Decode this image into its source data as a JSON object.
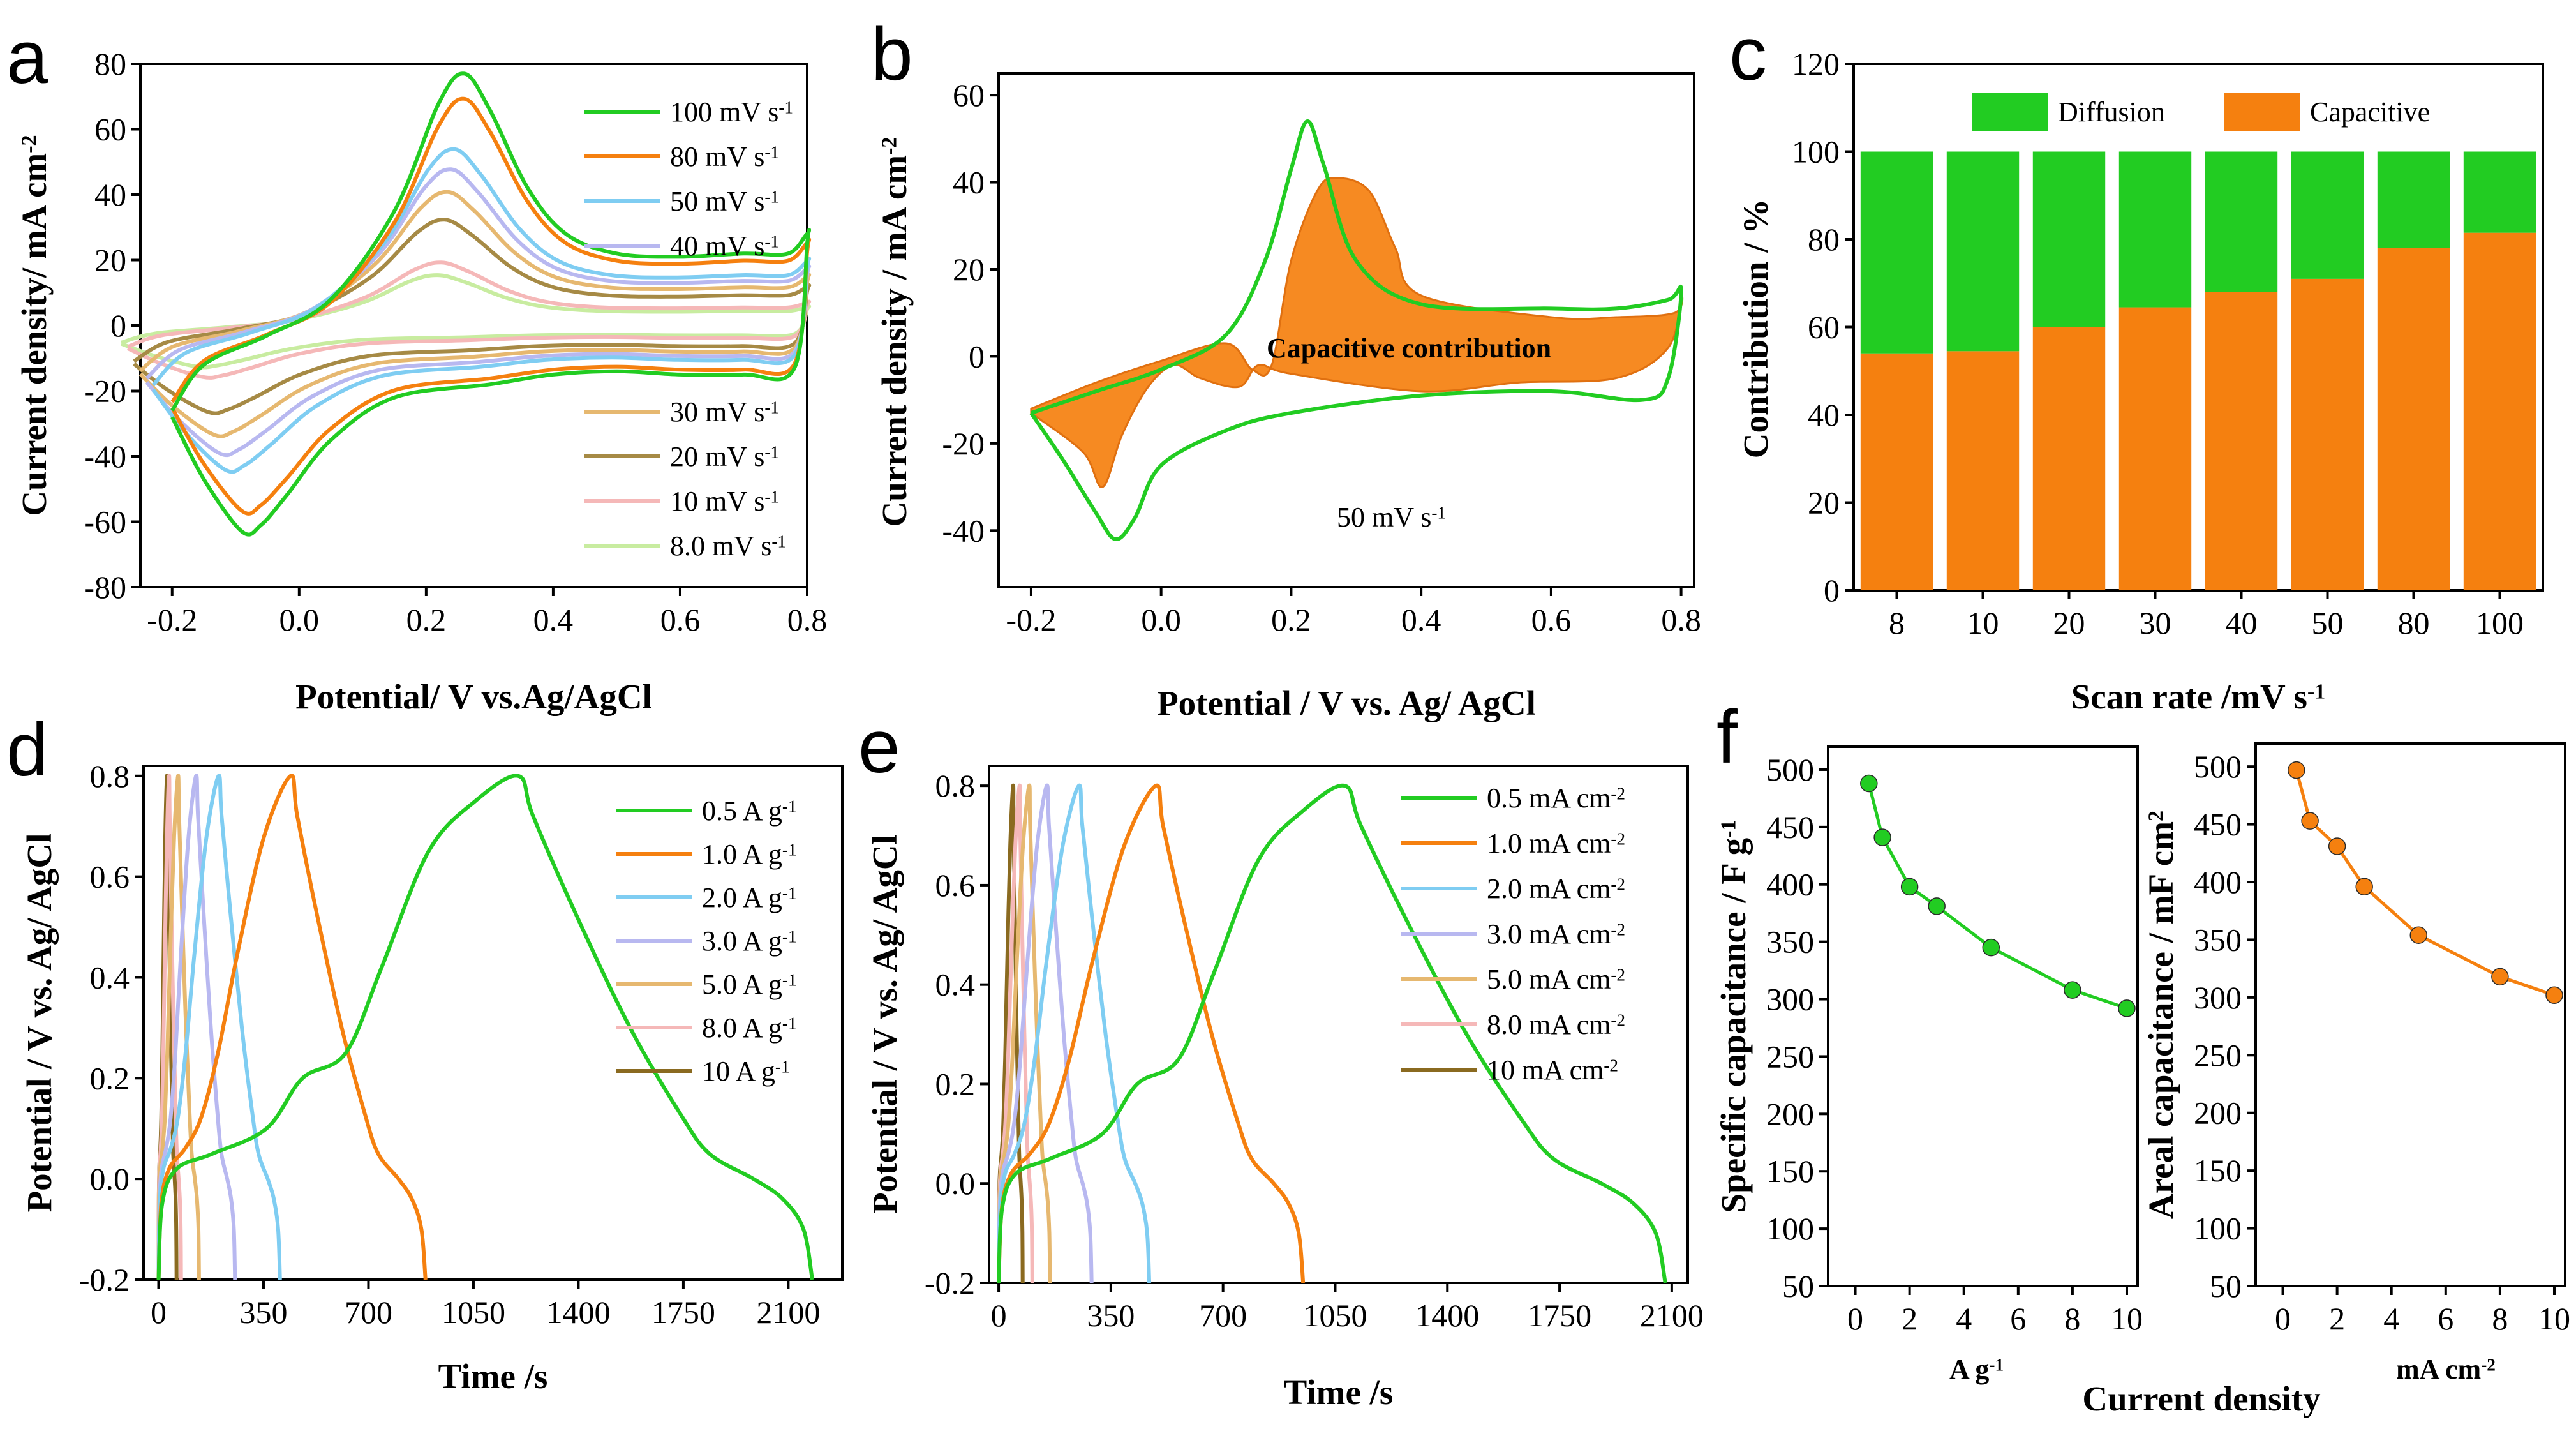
{
  "colors": {
    "green": "#22cc22",
    "orange": "#f5800f",
    "lightblue": "#7fcdf2",
    "lavender": "#b8b8f0",
    "tan": "#e6b870",
    "olive": "#a68a45",
    "pink": "#f5b8b8",
    "lightgreen": "#c8eca0",
    "brown": "#8a6a20",
    "violet": "#9b30e0"
  },
  "chart_data": [
    {
      "panel": "a",
      "type": "line",
      "xlabel": "Potential/ V vs.Ag/AgCl",
      "ylabel": "Current density/ mA cm",
      "ylabel_sup": "-2",
      "xlim": [
        -0.25,
        0.8
      ],
      "ylim": [
        -80,
        80
      ],
      "xticks": [
        -0.2,
        0.0,
        0.2,
        0.4,
        0.6,
        0.8
      ],
      "xtick_labels": [
        "-0.2",
        "0.0",
        "0.2",
        "0.4",
        "0.6",
        "0.8"
      ],
      "yticks": [
        -80,
        -60,
        -40,
        -20,
        0,
        20,
        40,
        60,
        80
      ],
      "ytick_labels": [
        "-80",
        "-60",
        "-40",
        "-20",
        "0",
        "20",
        "40",
        "60",
        "80"
      ],
      "series": [
        {
          "name": "100 mV s",
          "sup": "-1",
          "color": "green",
          "scale": 1.0,
          "shift": 0.0
        },
        {
          "name": "80  mV s",
          "sup": "-1",
          "color": "orange",
          "scale": 0.9,
          "shift": 0.0
        },
        {
          "name": "50  mV s",
          "sup": "-1",
          "color": "lightblue",
          "scale": 0.7,
          "shift": -0.03
        },
        {
          "name": "40  mV s",
          "sup": "-1",
          "color": "lavender",
          "scale": 0.62,
          "shift": -0.04
        },
        {
          "name": "30  mV s",
          "sup": "-1",
          "color": "tan",
          "scale": 0.53,
          "shift": -0.05
        },
        {
          "name": "20  mV s",
          "sup": "-1",
          "color": "olive",
          "scale": 0.42,
          "shift": -0.06
        },
        {
          "name": "10  mV s",
          "sup": "-1",
          "color": "pink",
          "scale": 0.25,
          "shift": -0.07
        },
        {
          "name": "8.0 mV s",
          "sup": "-1",
          "color": "lightgreen",
          "scale": 0.2,
          "shift": -0.08
        }
      ],
      "base_anodic": [
        [
          -0.2,
          -26
        ],
        [
          -0.15,
          -12
        ],
        [
          -0.05,
          -3
        ],
        [
          0.05,
          8
        ],
        [
          0.15,
          35
        ],
        [
          0.22,
          68
        ],
        [
          0.26,
          77
        ],
        [
          0.3,
          66
        ],
        [
          0.36,
          42
        ],
        [
          0.42,
          28
        ],
        [
          0.5,
          22
        ],
        [
          0.6,
          21
        ],
        [
          0.7,
          22
        ],
        [
          0.77,
          22
        ],
        [
          0.8,
          28
        ]
      ],
      "base_cathodic": [
        [
          0.8,
          25
        ],
        [
          0.78,
          -13
        ],
        [
          0.7,
          -15
        ],
        [
          0.6,
          -15
        ],
        [
          0.5,
          -14
        ],
        [
          0.4,
          -15
        ],
        [
          0.3,
          -18
        ],
        [
          0.15,
          -22
        ],
        [
          0.05,
          -35
        ],
        [
          -0.02,
          -52
        ],
        [
          -0.06,
          -61
        ],
        [
          -0.09,
          -63
        ],
        [
          -0.15,
          -47
        ],
        [
          -0.2,
          -28
        ]
      ]
    },
    {
      "panel": "b",
      "type": "line",
      "xlabel": "Potential / V vs. Ag/ AgCl",
      "ylabel": "Current density / mA cm",
      "ylabel_sup": "-2",
      "xlim": [
        -0.25,
        0.82
      ],
      "ylim": [
        -53,
        65
      ],
      "xticks": [
        -0.2,
        0.0,
        0.2,
        0.4,
        0.6,
        0.8
      ],
      "xtick_labels": [
        "-0.2",
        "0.0",
        "0.2",
        "0.4",
        "0.6",
        "0.8"
      ],
      "yticks": [
        -40,
        -20,
        0,
        20,
        40,
        60
      ],
      "ytick_labels": [
        "-40",
        "-20",
        "0",
        "20",
        "40",
        "60"
      ],
      "annotation": "Capacitive contribution",
      "scan_label": "50 mV s",
      "scan_sup": "-1",
      "cv": [
        [
          -0.2,
          -13
        ],
        [
          -0.1,
          -8
        ],
        [
          0.0,
          -3
        ],
        [
          0.1,
          5
        ],
        [
          0.16,
          22
        ],
        [
          0.2,
          43
        ],
        [
          0.225,
          54
        ],
        [
          0.25,
          44
        ],
        [
          0.3,
          22
        ],
        [
          0.4,
          12
        ],
        [
          0.6,
          11
        ],
        [
          0.7,
          11
        ],
        [
          0.78,
          13
        ],
        [
          0.8,
          15
        ],
        [
          0.78,
          -5
        ],
        [
          0.74,
          -10
        ],
        [
          0.6,
          -8
        ],
        [
          0.4,
          -9
        ],
        [
          0.2,
          -13
        ],
        [
          0.1,
          -17
        ],
        [
          0.0,
          -25
        ],
        [
          -0.04,
          -37
        ],
        [
          -0.07,
          -42
        ],
        [
          -0.1,
          -36
        ],
        [
          -0.15,
          -24
        ],
        [
          -0.2,
          -13
        ]
      ],
      "capacitive": [
        [
          -0.2,
          -12
        ],
        [
          -0.1,
          -6
        ],
        [
          0.0,
          -1
        ],
        [
          0.1,
          3
        ],
        [
          0.14,
          -3
        ],
        [
          0.17,
          -2
        ],
        [
          0.2,
          22
        ],
        [
          0.24,
          38
        ],
        [
          0.27,
          41
        ],
        [
          0.32,
          38
        ],
        [
          0.36,
          25
        ],
        [
          0.4,
          14
        ],
        [
          0.6,
          9
        ],
        [
          0.7,
          9
        ],
        [
          0.79,
          10
        ],
        [
          0.8,
          14
        ],
        [
          0.78,
          2
        ],
        [
          0.7,
          -5
        ],
        [
          0.55,
          -6
        ],
        [
          0.4,
          -8
        ],
        [
          0.2,
          -4
        ],
        [
          0.15,
          -2
        ],
        [
          0.12,
          -7
        ],
        [
          0.06,
          -5
        ],
        [
          0.02,
          -2
        ],
        [
          -0.02,
          -7
        ],
        [
          -0.06,
          -18
        ],
        [
          -0.09,
          -30
        ],
        [
          -0.12,
          -22
        ],
        [
          -0.2,
          -13
        ]
      ]
    },
    {
      "panel": "c",
      "type": "bar",
      "title": "",
      "xlabel": "Scan rate /mV s",
      "xlabel_sup": "-1",
      "ylabel": "Contribution / %",
      "ylim": [
        0,
        120
      ],
      "yticks": [
        0,
        20,
        40,
        60,
        80,
        100,
        120
      ],
      "ytick_labels": [
        "0",
        "20",
        "40",
        "60",
        "80",
        "100",
        "120"
      ],
      "categories": [
        "8",
        "10",
        "20",
        "30",
        "40",
        "50",
        "80",
        "100"
      ],
      "series": [
        {
          "name": "Capacitive",
          "color": "orange",
          "values": [
            54,
            54.5,
            60,
            64.5,
            68,
            71,
            78,
            81.5
          ]
        },
        {
          "name": "Diffusion",
          "color": "green",
          "values": [
            46,
            45.5,
            40,
            35.5,
            32,
            29,
            22,
            18.5
          ]
        }
      ],
      "legend": [
        "Diffusion",
        "Capacitive"
      ]
    },
    {
      "panel": "d",
      "type": "line",
      "xlabel": "Time /s",
      "ylabel": "Potential / V vs. Ag/ AgCl",
      "xlim": [
        -50,
        2280
      ],
      "ylim": [
        -0.2,
        0.82
      ],
      "xticks": [
        0,
        350,
        700,
        1050,
        1400,
        1750,
        2100
      ],
      "xtick_labels": [
        "0",
        "350",
        "700",
        "1050",
        "1400",
        "1750",
        "2100"
      ],
      "yticks": [
        -0.2,
        0.0,
        0.2,
        0.4,
        0.6,
        0.8
      ],
      "ytick_labels": [
        "-0.2",
        "0.0",
        "0.2",
        "0.4",
        "0.6",
        "0.8"
      ],
      "series": [
        {
          "name": "0.5 A g",
          "sup": "-1",
          "color": "green",
          "t_peak": 1200,
          "t_end": 2180
        },
        {
          "name": "1.0 A g",
          "sup": "-1",
          "color": "orange",
          "t_peak": 440,
          "t_end": 890
        },
        {
          "name": "2.0 A g",
          "sup": "-1",
          "color": "lightblue",
          "t_peak": 200,
          "t_end": 405
        },
        {
          "name": "3.0 A g",
          "sup": "-1",
          "color": "lavender",
          "t_peak": 125,
          "t_end": 255
        },
        {
          "name": "5.0 A g",
          "sup": "-1",
          "color": "tan",
          "t_peak": 65,
          "t_end": 135
        },
        {
          "name": "8.0 A g",
          "sup": "-1",
          "color": "pink",
          "t_peak": 35,
          "t_end": 75
        },
        {
          "name": "10  A g",
          "sup": "-1",
          "color": "brown",
          "t_peak": 28,
          "t_end": 60
        }
      ]
    },
    {
      "panel": "e",
      "type": "line",
      "xlabel": "Time /s",
      "ylabel": "Potential / V vs. Ag/ AgCl",
      "xlim": [
        -30,
        2150
      ],
      "ylim": [
        -0.2,
        0.84
      ],
      "xticks": [
        0,
        350,
        700,
        1050,
        1400,
        1750,
        2100
      ],
      "xtick_labels": [
        "0",
        "350",
        "700",
        "1050",
        "1400",
        "1750",
        "2100"
      ],
      "yticks": [
        -0.2,
        0.0,
        0.2,
        0.4,
        0.6,
        0.8
      ],
      "ytick_labels": [
        "-0.2",
        "0.0",
        "0.2",
        "0.4",
        "0.6",
        "0.8"
      ],
      "series": [
        {
          "name": "0.5  mA cm",
          "sup": "-2",
          "color": "green",
          "t_peak": 1080,
          "t_end": 2080
        },
        {
          "name": "1.0  mA cm",
          "sup": "-2",
          "color": "orange",
          "t_peak": 490,
          "t_end": 950
        },
        {
          "name": "2.0  mA cm",
          "sup": "-2",
          "color": "lightblue",
          "t_peak": 250,
          "t_end": 470
        },
        {
          "name": "3.0  mA cm",
          "sup": "-2",
          "color": "lavender",
          "t_peak": 150,
          "t_end": 290
        },
        {
          "name": "5.0  mA cm",
          "sup": "-2",
          "color": "tan",
          "t_peak": 95,
          "t_end": 160
        },
        {
          "name": "8.0  mA cm",
          "sup": "-2",
          "color": "pink",
          "t_peak": 65,
          "t_end": 105
        },
        {
          "name": "10  mA cm",
          "sup": "-2",
          "color": "brown",
          "t_peak": 45,
          "t_end": 75
        }
      ]
    },
    {
      "panel": "f-left",
      "type": "line",
      "ylabel": "Specific capacitance / F g",
      "ylabel_sup": "-1",
      "unit_label": "A g",
      "unit_sup": "-1",
      "xlim": [
        -1,
        10.4
      ],
      "ylim": [
        50,
        520
      ],
      "xticks": [
        0,
        2,
        4,
        6,
        8,
        10
      ],
      "xtick_labels": [
        "0",
        "2",
        "4",
        "6",
        "8",
        "10"
      ],
      "yticks": [
        50,
        100,
        150,
        200,
        250,
        300,
        350,
        400,
        450,
        500
      ],
      "ytick_labels": [
        "50",
        "100",
        "150",
        "200",
        "250",
        "300",
        "350",
        "400",
        "450",
        "500"
      ],
      "x": [
        0.5,
        1,
        2,
        3,
        5,
        8,
        10
      ],
      "y": [
        488,
        441,
        398,
        381,
        345,
        308,
        292
      ],
      "color": "green"
    },
    {
      "panel": "f-right",
      "type": "line",
      "ylabel": "Areal capacitance / mF cm",
      "ylabel_sup": "2",
      "unit_label": "mA cm",
      "unit_sup": "-2",
      "xlim": [
        -1,
        10.4
      ],
      "ylim": [
        50,
        520
      ],
      "xticks": [
        0,
        2,
        4,
        6,
        8,
        10
      ],
      "xtick_labels": [
        "0",
        "2",
        "4",
        "6",
        "8",
        "10"
      ],
      "yticks": [
        50,
        100,
        150,
        200,
        250,
        300,
        350,
        400,
        450,
        500
      ],
      "ytick_labels": [
        "50",
        "100",
        "150",
        "200",
        "250",
        "300",
        "350",
        "400",
        "450",
        "500"
      ],
      "x": [
        0.5,
        1,
        2,
        3,
        5,
        8,
        10
      ],
      "y": [
        497,
        453,
        431,
        396,
        354,
        318,
        302
      ],
      "color": "orange"
    }
  ],
  "shared_xlabel_f": "Current density",
  "panel_labels": [
    "a",
    "b",
    "c",
    "d",
    "e",
    "f"
  ]
}
